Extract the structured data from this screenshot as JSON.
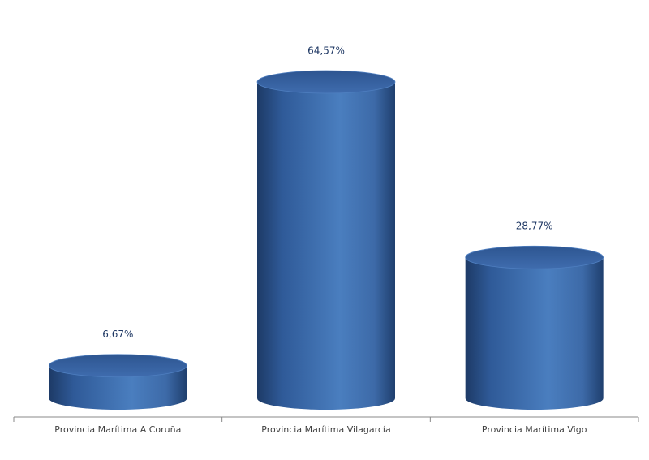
{
  "chart_data": {
    "type": "cylinder",
    "categories": [
      "Provincia Marítima A Coruña",
      "Provincia Marítima Vilagarcía",
      "Provincia Marítima Vigo"
    ],
    "values": [
      6.67,
      64.57,
      28.77
    ],
    "value_labels": [
      "6,67%",
      "64,57%",
      "28,77%"
    ],
    "color": "#4a7ebf"
  }
}
